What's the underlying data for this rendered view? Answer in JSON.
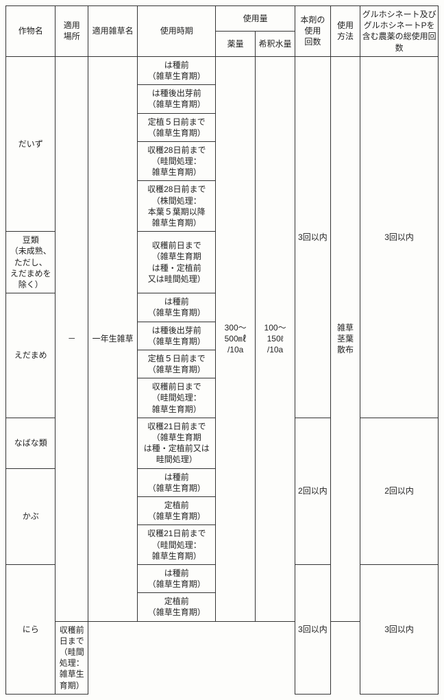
{
  "headers": {
    "crop": "作物名",
    "place": "適用\n場所",
    "weed": "適用雑草名",
    "timing": "使用時期",
    "amount_group": "使用量",
    "amount_chem": "薬量",
    "amount_water": "希釈水量",
    "count": "本剤の\n使用\n回数",
    "method": "使用\n方法",
    "total": "グルホシネート及びグルホシネートPを含む農薬の総使用回数"
  },
  "shared": {
    "place": "－",
    "weed": "一年生雑草",
    "chem": "300～\n500㎖\n/10a",
    "water": "100～\n150ℓ\n/10a",
    "method": "雑草\n茎葉\n散布"
  },
  "rows": {
    "daizu": {
      "crop": "だいず",
      "timings": [
        "は種前\n（雑草生育期）",
        "は種後出芽前\n（雑草生育期）",
        "定植５日前まで\n（雑草生育期）",
        "収穫28日前まで\n（畦間処理：\n雑草生育期）",
        "収穫28日前まで\n（株間処理：\n本葉５葉期以降\n雑草生育期）"
      ]
    },
    "mame": {
      "crop": "豆類\n（未成熟、\nただし、\nえだまめを\n除く）",
      "timing": "収穫前日まで\n（雑草生育期\nは種・定植前\n又は畦間処理）"
    },
    "edamame": {
      "crop": "えだまめ",
      "timings": [
        "は種前\n（雑草生育期）",
        "は種後出芽前\n（雑草生育期）",
        "定植５日前まで\n（雑草生育期）",
        "収穫前日まで\n（畦間処理：\n雑草生育期）"
      ]
    },
    "nabana": {
      "crop": "なばな類",
      "timing": "収穫21日前まで\n（雑草生育期\nは種・定植前又は\n畦間処理）"
    },
    "kabu": {
      "crop": "かぶ",
      "timings": [
        "は種前\n（雑草生育期）",
        "定植前\n（雑草生育期）",
        "収穫21日前まで\n（畦間処理：\n雑草生育期）"
      ]
    },
    "nira": {
      "crop": "にら",
      "timings": [
        "は種前\n（雑草生育期）",
        "定植前\n（雑草生育期）",
        "収穫前日まで\n（畦間処理：\n雑草生育期）"
      ]
    }
  },
  "counts": {
    "c3": "3回以内",
    "c2": "2回以内"
  },
  "style": {
    "background": "#fdfdfb",
    "border": "#333333",
    "text": "#222222",
    "font_size_pt": 9
  }
}
